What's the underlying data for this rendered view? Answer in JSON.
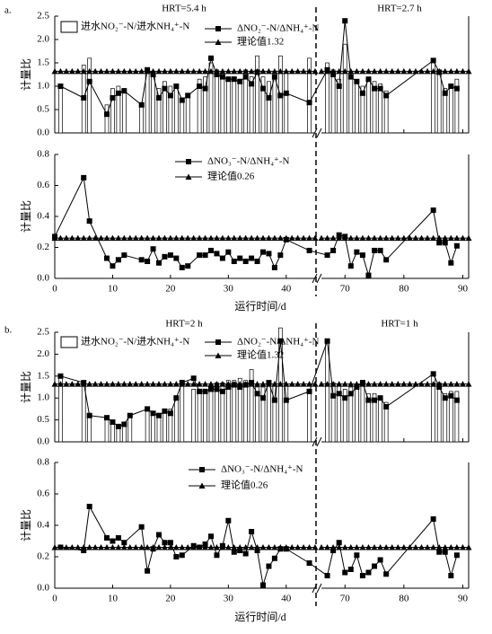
{
  "chart_data": [
    {
      "type": "combo",
      "panel_label": "a.",
      "hrt_labels": [
        "HRT=5.4 h",
        "HRT=2.7 h"
      ],
      "ylabel": "计量比",
      "xlim": [
        [
          0,
          45
        ],
        [
          66,
          91
        ]
      ],
      "ylim": [
        0,
        2.5
      ],
      "yticks": [
        {
          "value": 0,
          "label": "0.0"
        },
        0.5,
        {
          "value": 1,
          "label": "1.0"
        },
        1.5,
        {
          "value": 2,
          "label": "2.0"
        },
        2.5
      ],
      "x": [
        1,
        5,
        6,
        9,
        10,
        11,
        12,
        15,
        16,
        17,
        18,
        19,
        20,
        21,
        22,
        23,
        25,
        26,
        27,
        28,
        29,
        30,
        31,
        32,
        33,
        34,
        35,
        36,
        37,
        38,
        39,
        40,
        44,
        67,
        68,
        69,
        70,
        71,
        72,
        73,
        74,
        75,
        76,
        77,
        85,
        86,
        87,
        88,
        89
      ],
      "series": [
        {
          "name": "进水NO₂⁻-N/进水NH₄⁺-N",
          "kind": "bar",
          "color": "#ffffff",
          "values": [
            1.0,
            1.45,
            1.6,
            0.6,
            0.95,
            1.0,
            0.95,
            0.6,
            1.35,
            1.3,
            0.95,
            1.1,
            1.0,
            1.05,
            0.75,
            0.85,
            1.15,
            1.2,
            1.5,
            1.35,
            1.3,
            1.2,
            1.2,
            1.15,
            1.35,
            1.2,
            1.65,
            1.2,
            1.1,
            1.2,
            1.65,
            1.3,
            1.6,
            1.5,
            1.35,
            1.15,
            1.9,
            1.2,
            1.1,
            1.0,
            1.15,
            1.1,
            1.05,
            0.9,
            1.6,
            1.3,
            0.95,
            1.05,
            1.15
          ]
        },
        {
          "name": "ΔNO₂⁻-N/ΔNH₄⁺-N",
          "kind": "line",
          "color": "#000000",
          "values": [
            1.0,
            0.75,
            1.1,
            0.4,
            0.75,
            0.85,
            0.9,
            0.6,
            1.35,
            1.25,
            0.75,
            0.95,
            0.8,
            1.0,
            0.7,
            0.8,
            1.0,
            0.95,
            1.6,
            1.25,
            1.2,
            1.15,
            1.15,
            1.1,
            1.2,
            1.05,
            1.3,
            0.95,
            0.75,
            1.2,
            0.8,
            0.85,
            0.65,
            1.35,
            1.25,
            1.0,
            2.4,
            1.2,
            1.1,
            0.85,
            1.15,
            0.95,
            0.95,
            0.8,
            1.55,
            1.3,
            0.85,
            1.0,
            0.95
          ]
        },
        {
          "name": "理论值1.32",
          "kind": "reference",
          "color": "#000000",
          "value": 1.32
        }
      ]
    },
    {
      "type": "line",
      "ylabel": "计量比",
      "xlabel": "运行时间/d",
      "xlim": [
        [
          0,
          45
        ],
        [
          66,
          91
        ]
      ],
      "xticks": [
        0,
        10,
        20,
        30,
        40,
        70,
        80,
        90
      ],
      "ylim": [
        0,
        0.8
      ],
      "yticks": [
        {
          "value": 0,
          "label": "0.0"
        },
        0.2,
        0.4,
        0.6,
        0.8
      ],
      "x": [
        0,
        5,
        6,
        9,
        10,
        11,
        12,
        15,
        16,
        17,
        18,
        19,
        20,
        21,
        22,
        23,
        25,
        26,
        27,
        28,
        29,
        30,
        31,
        32,
        33,
        34,
        35,
        36,
        37,
        38,
        39,
        40,
        44,
        67,
        68,
        69,
        70,
        71,
        72,
        73,
        74,
        75,
        76,
        77,
        85,
        86,
        87,
        88,
        89
      ],
      "series": [
        {
          "name": "ΔNO₃⁻-N/ΔNH₄⁺-N",
          "kind": "line",
          "color": "#000000",
          "values": [
            0.27,
            0.65,
            0.37,
            0.13,
            0.08,
            0.12,
            0.15,
            0.12,
            0.11,
            0.19,
            0.1,
            0.14,
            0.15,
            0.13,
            0.07,
            0.08,
            0.15,
            0.15,
            0.18,
            0.16,
            0.13,
            0.17,
            0.11,
            0.13,
            0.11,
            0.13,
            0.11,
            0.17,
            0.16,
            0.07,
            0.15,
            0.25,
            0.18,
            0.15,
            0.18,
            0.28,
            0.27,
            0.08,
            0.17,
            0.15,
            0.02,
            0.18,
            0.18,
            0.12,
            0.44,
            0.23,
            0.23,
            0.1,
            0.21
          ]
        },
        {
          "name": "理论值0.26",
          "kind": "reference",
          "color": "#000000",
          "value": 0.26
        }
      ]
    },
    {
      "type": "combo",
      "panel_label": "b.",
      "hrt_labels": [
        "HRT=2 h",
        "HRT=1 h"
      ],
      "ylabel": "计量比",
      "xlim": [
        [
          0,
          45
        ],
        [
          66,
          91
        ]
      ],
      "ylim": [
        0,
        2.5
      ],
      "yticks": [
        {
          "value": 0,
          "label": "0.0"
        },
        0.5,
        {
          "value": 1,
          "label": "1.0"
        },
        1.5,
        {
          "value": 2,
          "label": "2.0"
        },
        2.5
      ],
      "x": [
        1,
        5,
        6,
        9,
        10,
        11,
        12,
        13,
        16,
        17,
        18,
        19,
        20,
        21,
        22,
        24,
        25,
        26,
        27,
        28,
        29,
        30,
        31,
        32,
        33,
        34,
        35,
        36,
        37,
        38,
        39,
        40,
        44,
        67,
        68,
        69,
        70,
        71,
        72,
        73,
        74,
        75,
        76,
        77,
        85,
        86,
        87,
        88,
        89
      ],
      "series": [
        {
          "name": "进水NO₂⁻-N/进水NH₄⁺-N",
          "kind": "bar",
          "color": "#ffffff",
          "values": [
            1.5,
            1.35,
            0.6,
            0.55,
            0.45,
            0.35,
            0.4,
            0.6,
            0.75,
            0.7,
            0.65,
            0.7,
            0.75,
            1.05,
            1.4,
            1.2,
            1.2,
            1.2,
            1.25,
            1.35,
            1.35,
            1.4,
            1.4,
            1.45,
            1.4,
            1.65,
            1.25,
            1.25,
            1.3,
            1.3,
            2.6,
            1.3,
            1.15,
            2.3,
            1.35,
            1.3,
            1.2,
            1.25,
            1.3,
            1.4,
            1.1,
            1.1,
            1.05,
            0.9,
            1.6,
            1.35,
            1.1,
            1.15,
            1.15
          ]
        },
        {
          "name": "ΔNO₂⁻-N/ΔNH₄⁺-N",
          "kind": "line",
          "color": "#000000",
          "values": [
            1.5,
            1.35,
            0.6,
            0.55,
            0.45,
            0.35,
            0.4,
            0.6,
            0.75,
            0.65,
            0.6,
            0.7,
            0.65,
            1.0,
            1.35,
            1.45,
            1.15,
            1.15,
            1.2,
            1.2,
            1.15,
            1.25,
            1.3,
            1.25,
            1.3,
            1.35,
            1.1,
            1.0,
            1.35,
            0.95,
            2.3,
            0.95,
            1.15,
            2.3,
            1.05,
            1.1,
            1.0,
            1.1,
            1.25,
            1.35,
            0.95,
            0.95,
            1.0,
            0.8,
            1.55,
            1.25,
            1.0,
            1.05,
            0.95
          ]
        },
        {
          "name": "理论值1.32",
          "kind": "reference",
          "color": "#000000",
          "value": 1.32
        }
      ]
    },
    {
      "type": "line",
      "ylabel": "计量比",
      "xlabel": "运行时间/d",
      "xlim": [
        [
          0,
          45
        ],
        [
          66,
          91
        ]
      ],
      "xticks": [
        0,
        10,
        20,
        30,
        40,
        70,
        80,
        90
      ],
      "ylim": [
        0,
        0.8
      ],
      "yticks": [
        {
          "value": 0,
          "label": "0.0"
        },
        0.2,
        0.4,
        0.6,
        0.8
      ],
      "x": [
        1,
        5,
        6,
        9,
        10,
        11,
        12,
        15,
        16,
        17,
        18,
        19,
        20,
        21,
        22,
        24,
        25,
        26,
        27,
        28,
        29,
        30,
        31,
        32,
        33,
        34,
        35,
        36,
        37,
        38,
        39,
        40,
        44,
        67,
        68,
        69,
        70,
        71,
        72,
        73,
        74,
        75,
        76,
        77,
        85,
        86,
        87,
        88,
        89
      ],
      "series": [
        {
          "name": "ΔNO₃⁻-N/ΔNH₄⁺-N",
          "kind": "line",
          "color": "#000000",
          "values": [
            0.26,
            0.24,
            0.52,
            0.32,
            0.3,
            0.32,
            0.29,
            0.39,
            0.11,
            0.25,
            0.34,
            0.29,
            0.29,
            0.2,
            0.21,
            0.27,
            0.26,
            0.28,
            0.33,
            0.21,
            0.27,
            0.43,
            0.23,
            0.24,
            0.22,
            0.36,
            0.24,
            0.02,
            0.14,
            0.19,
            0.25,
            0.25,
            0.16,
            0.08,
            0.24,
            0.29,
            0.1,
            0.12,
            0.21,
            0.08,
            0.1,
            0.14,
            0.18,
            0.09,
            0.44,
            0.23,
            0.23,
            0.08,
            0.21
          ]
        },
        {
          "name": "理论值0.26",
          "kind": "reference",
          "color": "#000000",
          "value": 0.26
        }
      ]
    }
  ]
}
